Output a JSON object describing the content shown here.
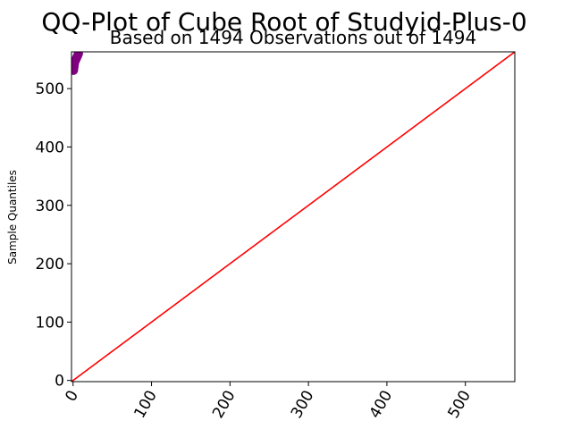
{
  "chart_data": {
    "type": "scatter",
    "title": "QQ-Plot of Cube Root of Studyid-Plus-0",
    "subtitle": "Based on 1494 Observations out of 1494",
    "xlabel": "",
    "ylabel": "Sample Quantiles",
    "xlim": [
      -2,
      563
    ],
    "ylim": [
      -2,
      563
    ],
    "xticks": [
      0,
      100,
      200,
      300,
      400,
      500
    ],
    "yticks": [
      0,
      100,
      200,
      300,
      400,
      500
    ],
    "tick_rotation_x": -60,
    "grid": false,
    "series": [
      {
        "kind": "points",
        "color": "#800080",
        "x": [
          0.6,
          0.8,
          1.0,
          1.2,
          1.4,
          1.6,
          1.8,
          2.0,
          2.3,
          2.6,
          3.0,
          3.3,
          3.6,
          4.0,
          4.3,
          4.6,
          5.0,
          5.3,
          5.6,
          6.0,
          6.3,
          6.6,
          7.0
        ],
        "y": [
          531,
          533,
          535,
          537,
          539,
          541,
          543,
          545,
          546,
          547,
          548,
          549,
          550,
          551,
          552,
          553,
          554,
          555,
          556,
          557,
          558,
          559,
          560
        ]
      },
      {
        "kind": "reference-line",
        "color": "#ff0000",
        "x": [
          -2,
          563
        ],
        "y": [
          -2,
          563
        ]
      }
    ]
  }
}
